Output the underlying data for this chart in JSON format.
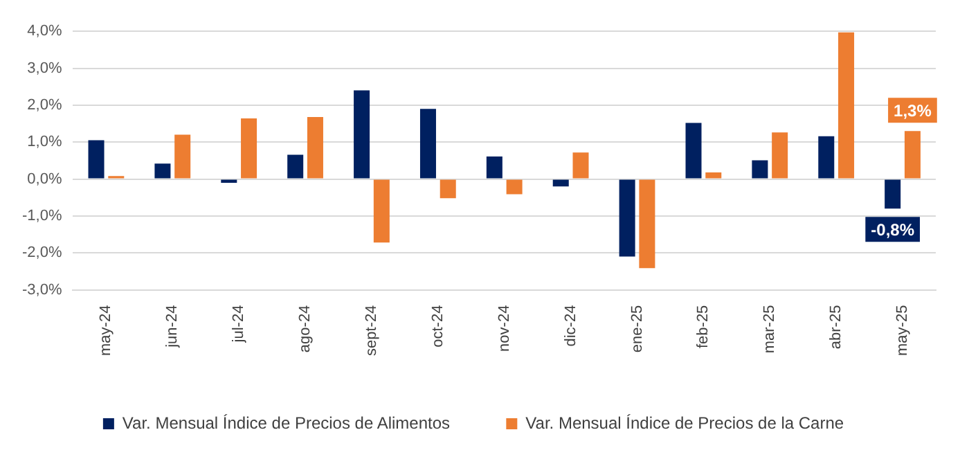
{
  "chart_data": {
    "type": "bar",
    "categories": [
      "may-24",
      "jun-24",
      "jul-24",
      "ago-24",
      "sept-24",
      "oct-24",
      "nov-24",
      "dic-24",
      "ene-25",
      "feb-25",
      "mar-25",
      "abr-25",
      "may-25"
    ],
    "series": [
      {
        "name": "Var. Mensual Índice de Precios de Alimentos",
        "color": "#002060",
        "values": [
          1.05,
          0.42,
          -0.1,
          0.66,
          2.4,
          1.9,
          0.61,
          -0.2,
          -2.1,
          1.52,
          0.51,
          1.16,
          -0.8
        ],
        "value_labels": [
          null,
          null,
          null,
          null,
          null,
          null,
          null,
          null,
          null,
          null,
          null,
          null,
          "-0,8%"
        ]
      },
      {
        "name": "Var. Mensual Índice de Precios de la Carne",
        "color": "#ed7d31",
        "values": [
          0.08,
          1.2,
          1.64,
          1.68,
          -1.72,
          -0.52,
          -0.41,
          0.72,
          -2.41,
          0.18,
          1.26,
          3.97,
          1.3
        ],
        "value_labels": [
          null,
          null,
          null,
          null,
          null,
          null,
          null,
          null,
          null,
          null,
          null,
          null,
          "1,3%"
        ]
      }
    ],
    "ylim": [
      -3,
      4
    ],
    "yticks": [
      {
        "value": -3,
        "label": "-3,0%"
      },
      {
        "value": -2,
        "label": "-2,0%"
      },
      {
        "value": -1,
        "label": "-1,0%"
      },
      {
        "value": 0,
        "label": "0,0%"
      },
      {
        "value": 1,
        "label": "1,0%"
      },
      {
        "value": 2,
        "label": "2,0%"
      },
      {
        "value": 3,
        "label": "3,0%"
      },
      {
        "value": 4,
        "label": "4,0%"
      }
    ],
    "grid": "y",
    "legend": "bottom"
  }
}
